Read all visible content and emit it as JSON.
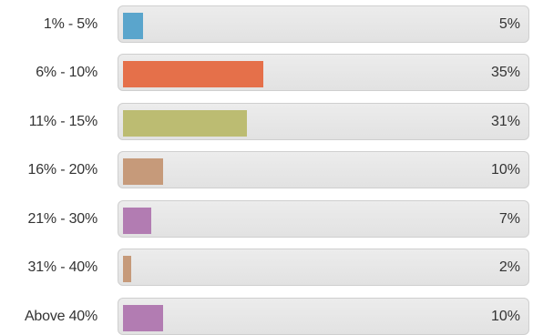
{
  "chart_data": {
    "type": "bar",
    "orientation": "horizontal",
    "categories": [
      "1% - 5%",
      "6% - 10%",
      "11% - 15%",
      "16% - 20%",
      "21% - 30%",
      "31% - 40%",
      "Above 40%"
    ],
    "values": [
      5,
      35,
      31,
      10,
      7,
      2,
      10
    ],
    "value_labels": [
      "5%",
      "35%",
      "31%",
      "10%",
      "7%",
      "2%",
      "10%"
    ],
    "colors": [
      "#5aa5cc",
      "#e5704a",
      "#bcbc72",
      "#c69a7a",
      "#b27cb2",
      "#c69a7a",
      "#b27cb2"
    ],
    "xlim": [
      0,
      100
    ],
    "grid": false,
    "legend": "none"
  }
}
